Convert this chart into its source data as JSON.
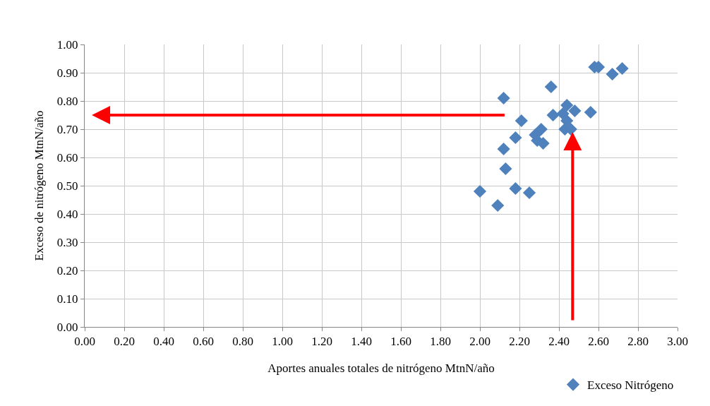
{
  "chart_data": {
    "type": "scatter",
    "xlabel": "Aportes anuales totales de nitrógeno MtnN/año",
    "ylabel": "Exceso de nitrógeno MtnN/año",
    "series": [
      {
        "name": "Exceso Nitrógeno",
        "color": "#4f81bd",
        "x": [
          2.0,
          2.09,
          2.12,
          2.12,
          2.13,
          2.18,
          2.18,
          2.21,
          2.25,
          2.28,
          2.29,
          2.31,
          2.32,
          2.36,
          2.37,
          2.42,
          2.44,
          2.44,
          2.43,
          2.46,
          2.48,
          2.56,
          2.58,
          2.6,
          2.67,
          2.72
        ],
        "values": [
          0.48,
          0.43,
          0.63,
          0.81,
          0.56,
          0.67,
          0.49,
          0.73,
          0.475,
          0.68,
          0.66,
          0.7,
          0.65,
          0.85,
          0.75,
          0.755,
          0.785,
          0.73,
          0.7,
          0.7,
          0.765,
          0.76,
          0.92,
          0.92,
          0.895,
          0.915
        ]
      }
    ],
    "xlim": [
      0,
      3
    ],
    "xticks": [
      {
        "value": 0,
        "label": "0.00"
      },
      {
        "value": 0.2,
        "label": "0.20"
      },
      {
        "value": 0.4,
        "label": "0.40"
      },
      {
        "value": 0.6,
        "label": "0.60"
      },
      {
        "value": 0.8,
        "label": "0.80"
      },
      {
        "value": 1.0,
        "label": "1.00"
      },
      {
        "value": 1.2,
        "label": "1.20"
      },
      {
        "value": 1.4,
        "label": "1.40"
      },
      {
        "value": 1.6,
        "label": "1.60"
      },
      {
        "value": 1.8,
        "label": "1.80"
      },
      {
        "value": 2.0,
        "label": "2.00"
      },
      {
        "value": 2.2,
        "label": "2.20"
      },
      {
        "value": 2.4,
        "label": "2.40"
      },
      {
        "value": 2.6,
        "label": "2.60"
      },
      {
        "value": 2.8,
        "label": "2.80"
      },
      {
        "value": 3.0,
        "label": "3.00"
      }
    ],
    "ylim": [
      0,
      1
    ],
    "yticks": [
      {
        "value": 0,
        "label": "0.00"
      },
      {
        "value": 0.1,
        "label": "0.10"
      },
      {
        "value": 0.2,
        "label": "0.20"
      },
      {
        "value": 0.3,
        "label": "0.30"
      },
      {
        "value": 0.4,
        "label": "0.40"
      },
      {
        "value": 0.5,
        "label": "0.50"
      },
      {
        "value": 0.6,
        "label": "0.60"
      },
      {
        "value": 0.7,
        "label": "0.70"
      },
      {
        "value": 0.8,
        "label": "0.80"
      },
      {
        "value": 0.9,
        "label": "0.90"
      },
      {
        "value": 1.0,
        "label": "1.00"
      }
    ],
    "grid": true,
    "legend": "bottom right",
    "marker": "diamond"
  }
}
